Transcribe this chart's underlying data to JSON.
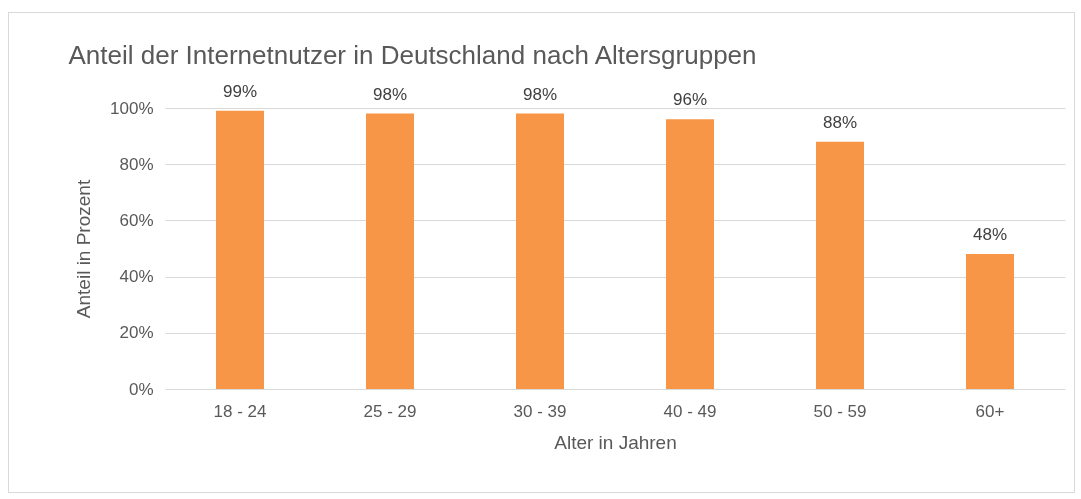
{
  "chart_data": {
    "type": "bar",
    "title": "Anteil der Internetnutzer in Deutschland nach Altersgruppen",
    "xlabel": "Alter in Jahren",
    "ylabel": "Anteil in Prozent",
    "categories": [
      "18 - 24",
      "25 - 29",
      "30 - 39",
      "40 - 49",
      "50 - 59",
      "60+"
    ],
    "values": [
      99,
      98,
      98,
      96,
      88,
      48
    ],
    "value_labels": [
      "99%",
      "98%",
      "98%",
      "96%",
      "88%",
      "48%"
    ],
    "color": "#f79646",
    "ylim": [
      0,
      100
    ],
    "yticks": [
      {
        "value": 0,
        "label": "0%"
      },
      {
        "value": 20,
        "label": "20%"
      },
      {
        "value": 40,
        "label": "40%"
      },
      {
        "value": 60,
        "label": "60%"
      },
      {
        "value": 80,
        "label": "80%"
      },
      {
        "value": 100,
        "label": "100%"
      }
    ],
    "grid": "y"
  }
}
